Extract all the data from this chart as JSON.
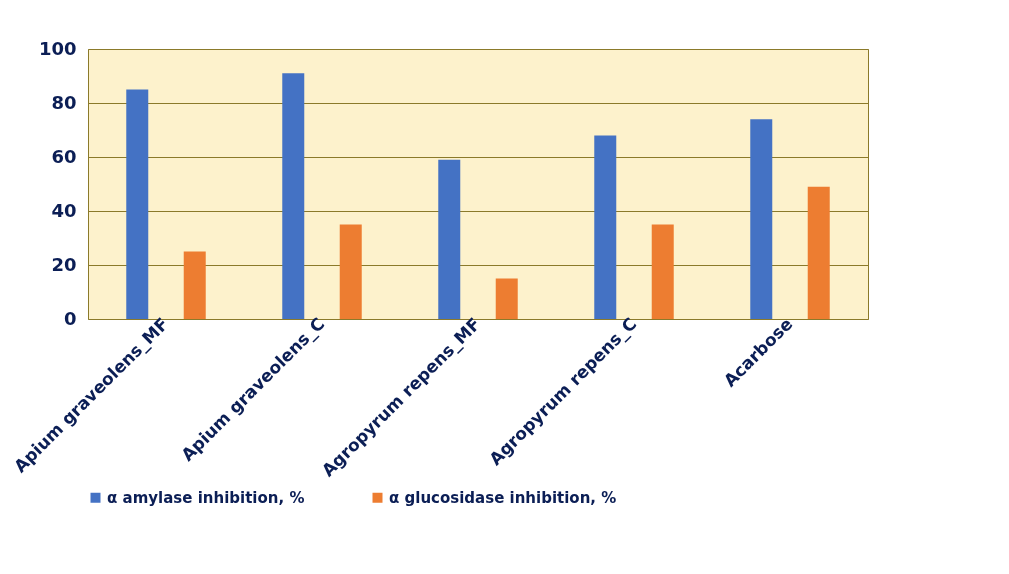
{
  "chart_data": {
    "type": "bar",
    "categories": [
      "Apium graveolens_MF",
      "Apium graveolens_C",
      "Agropyrum repens_MF",
      "Agropyrum repens_C",
      "Acarbose"
    ],
    "series": [
      {
        "name": "α amylase inhibition,  %",
        "color": "#4472c4",
        "values": [
          85,
          91,
          59,
          68,
          74
        ]
      },
      {
        "name": "α glucosidase inhibition, %",
        "color": "#ed7d31",
        "values": [
          25,
          35,
          15,
          35,
          49
        ]
      }
    ],
    "ylim": [
      0,
      100
    ],
    "yticks": [
      0,
      20,
      40,
      60,
      80,
      100
    ],
    "grid": "y",
    "legend": "bottom"
  }
}
